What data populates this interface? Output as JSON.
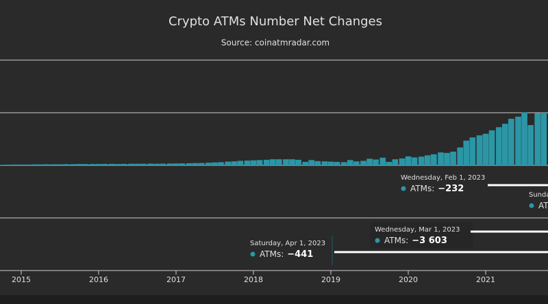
{
  "chart_data": {
    "type": "bar",
    "title": "Crypto ATMs Number Net Changes",
    "subtitle": "Source: coinatmradar.com",
    "x": [
      2014.75,
      2014.83,
      2014.92,
      2015.0,
      2015.08,
      2015.17,
      2015.25,
      2015.33,
      2015.42,
      2015.5,
      2015.58,
      2015.67,
      2015.75,
      2015.83,
      2015.92,
      2016.0,
      2016.08,
      2016.17,
      2016.25,
      2016.33,
      2016.42,
      2016.5,
      2016.58,
      2016.67,
      2016.75,
      2016.83,
      2016.92,
      2017.0,
      2017.08,
      2017.17,
      2017.25,
      2017.33,
      2017.42,
      2017.5,
      2017.58,
      2017.67,
      2017.75,
      2017.83,
      2017.92,
      2018.0,
      2018.08,
      2018.17,
      2018.25,
      2018.33,
      2018.42,
      2018.5,
      2018.58,
      2018.67,
      2018.75,
      2018.83,
      2018.92,
      2019.0,
      2019.08,
      2019.17,
      2019.25,
      2019.33,
      2019.42,
      2019.5,
      2019.58,
      2019.67,
      2019.75,
      2019.83,
      2019.92,
      2020.0,
      2020.08,
      2020.17,
      2020.25,
      2020.33,
      2020.42,
      2020.5,
      2020.58,
      2020.67,
      2020.75,
      2020.83,
      2020.92,
      2021.0,
      2021.08,
      2021.17,
      2021.25,
      2021.33,
      2021.42,
      2021.5,
      2021.58,
      2021.67,
      2021.75
    ],
    "values": [
      20,
      25,
      30,
      30,
      30,
      35,
      35,
      40,
      40,
      40,
      45,
      45,
      50,
      50,
      50,
      50,
      55,
      55,
      50,
      55,
      60,
      60,
      60,
      65,
      60,
      65,
      70,
      70,
      75,
      80,
      85,
      90,
      100,
      110,
      120,
      140,
      150,
      170,
      180,
      190,
      200,
      210,
      230,
      230,
      230,
      230,
      210,
      130,
      200,
      160,
      150,
      140,
      130,
      120,
      200,
      150,
      170,
      250,
      220,
      290,
      130,
      230,
      260,
      340,
      300,
      330,
      380,
      420,
      490,
      470,
      520,
      680,
      940,
      1060,
      1140,
      1200,
      1330,
      1450,
      1580,
      1770,
      1850,
      2020,
      1530,
      1980,
      2000
    ],
    "color": "#2b96a6",
    "xlim": [
      2014.726,
      2021.805
    ],
    "xticks": [
      2015,
      2016,
      2017,
      2018,
      2019,
      2020,
      2021
    ],
    "ylim": [
      -4000,
      4000
    ],
    "yticks": [
      -4000,
      -2000,
      0,
      2000,
      4000
    ],
    "grid": true,
    "tooltips": [
      {
        "date": "Wednesday, Feb 1, 2023",
        "label": "ATMs:",
        "value": -232,
        "value_label": "−232"
      },
      {
        "date": "Wednesday, Mar 1, 2023",
        "label": "ATMs:",
        "value": -3603,
        "value_label": "−3 603"
      },
      {
        "date": "Saturday, Apr 1, 2023",
        "label": "ATMs:",
        "value": -441,
        "value_label": "−441"
      },
      {
        "date": "Sunda",
        "label": "AT"
      }
    ]
  }
}
